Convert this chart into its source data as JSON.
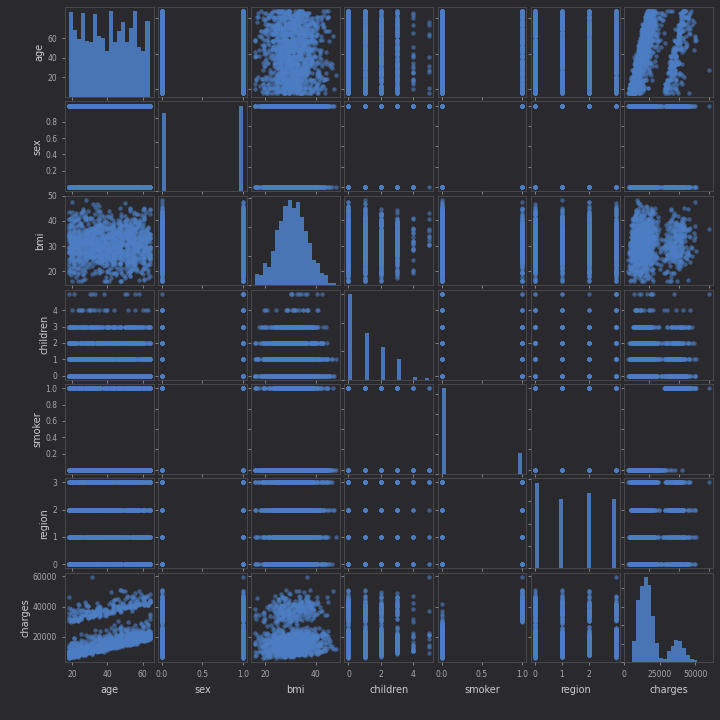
{
  "columns": [
    "age",
    "sex",
    "bmi",
    "children",
    "smoker",
    "region",
    "charges"
  ],
  "background_color": "#2a2a2e",
  "axes_background": "#2a2a2e",
  "scatter_color": "#4d7ec4",
  "scatter_alpha": 0.6,
  "scatter_size": 10,
  "hist_color": "#4d7ec4",
  "hist_alpha": 0.9,
  "tick_color": "#aaaaaa",
  "label_color": "#cccccc",
  "spine_color": "#555555",
  "fig_size": [
    7.2,
    7.2
  ],
  "dpi": 100,
  "n_samples": 1338,
  "seed": 0
}
